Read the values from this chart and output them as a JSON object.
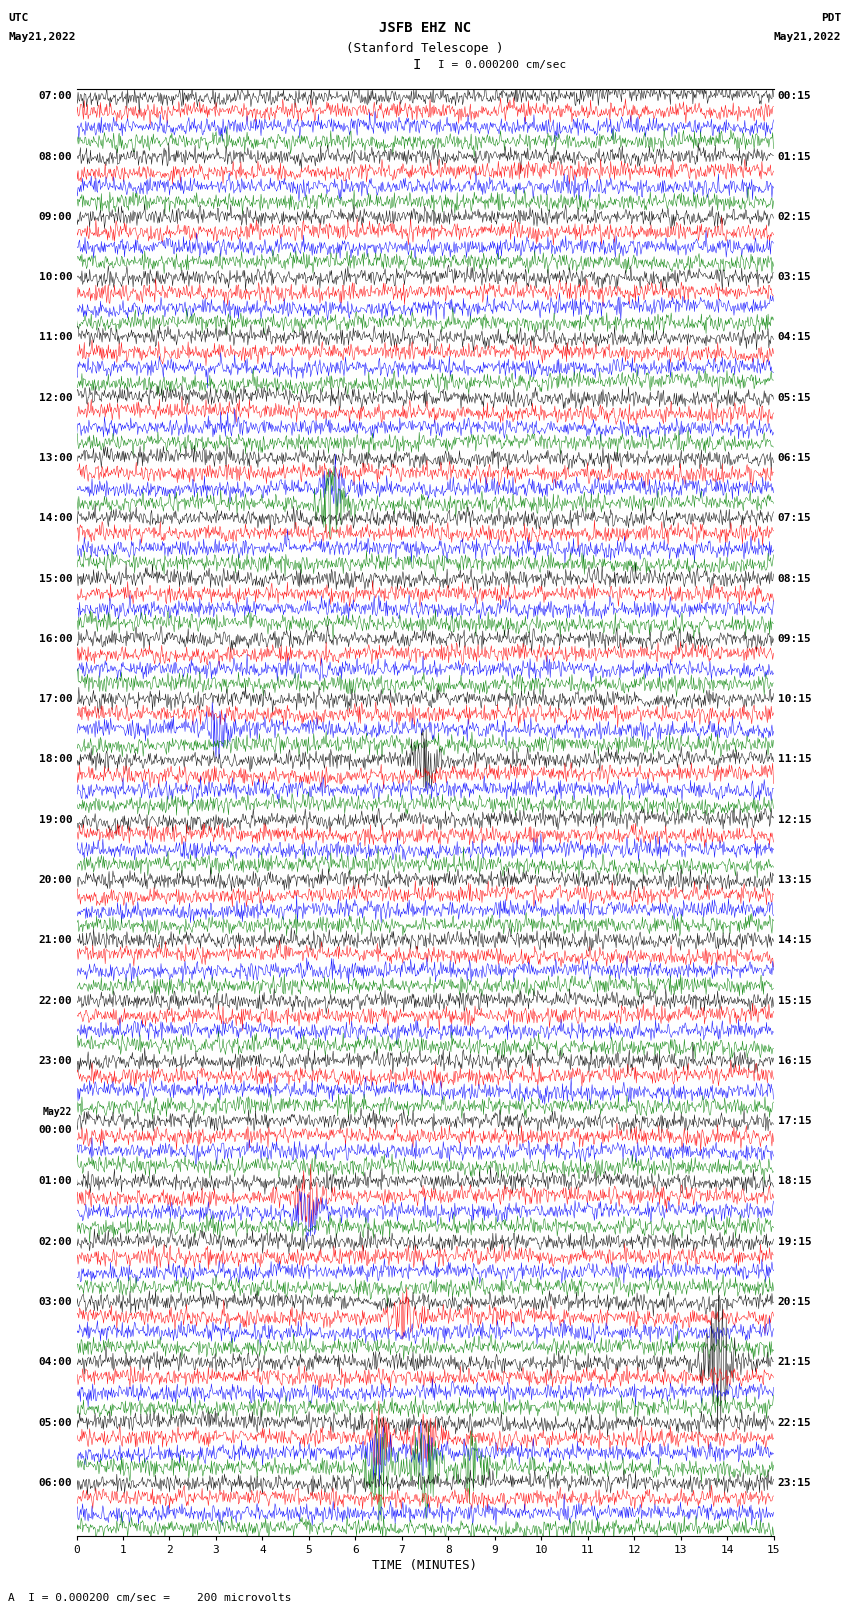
{
  "title_line1": "JSFB EHZ NC",
  "title_line2": "(Stanford Telescope )",
  "scale_label": "I = 0.000200 cm/sec",
  "bottom_label": "A  I = 0.000200 cm/sec =    200 microvolts",
  "xlabel": "TIME (MINUTES)",
  "left_header_line1": "UTC",
  "left_header_line2": "May21,2022",
  "right_header_line1": "PDT",
  "right_header_line2": "May21,2022",
  "num_hour_blocks": 24,
  "traces_per_block": 4,
  "minutes_per_row": 15,
  "trace_colors": [
    "black",
    "red",
    "blue",
    "green"
  ],
  "bg_color": "white",
  "fig_width": 8.5,
  "fig_height": 16.13,
  "dpi": 100,
  "left_times": [
    "07:00",
    "",
    "",
    "",
    "08:00",
    "",
    "",
    "",
    "09:00",
    "",
    "",
    "",
    "10:00",
    "",
    "",
    "",
    "11:00",
    "",
    "",
    "",
    "12:00",
    "",
    "",
    "",
    "13:00",
    "",
    "",
    "",
    "14:00",
    "",
    "",
    "",
    "15:00",
    "",
    "",
    "",
    "16:00",
    "",
    "",
    "",
    "17:00",
    "",
    "",
    "",
    "18:00",
    "",
    "",
    "",
    "19:00",
    "",
    "",
    "",
    "20:00",
    "",
    "",
    "",
    "21:00",
    "",
    "",
    "",
    "22:00",
    "",
    "",
    "",
    "23:00",
    "",
    "",
    "",
    "May22 00:00",
    "",
    "",
    "",
    "01:00",
    "",
    "",
    "",
    "02:00",
    "",
    "",
    "",
    "03:00",
    "",
    "",
    "",
    "04:00",
    "",
    "",
    "",
    "05:00",
    "",
    "",
    "",
    "06:00",
    "",
    "",
    ""
  ],
  "right_times": [
    "00:15",
    "",
    "",
    "",
    "01:15",
    "",
    "",
    "",
    "02:15",
    "",
    "",
    "",
    "03:15",
    "",
    "",
    "",
    "04:15",
    "",
    "",
    "",
    "05:15",
    "",
    "",
    "",
    "06:15",
    "",
    "",
    "",
    "07:15",
    "",
    "",
    "",
    "08:15",
    "",
    "",
    "",
    "09:15",
    "",
    "",
    "",
    "10:15",
    "",
    "",
    "",
    "11:15",
    "",
    "",
    "",
    "12:15",
    "",
    "",
    "",
    "13:15",
    "",
    "",
    "",
    "14:15",
    "",
    "",
    "",
    "15:15",
    "",
    "",
    "",
    "16:15",
    "",
    "",
    "",
    "17:15",
    "",
    "",
    "",
    "18:15",
    "",
    "",
    "",
    "19:15",
    "",
    "",
    "",
    "20:15",
    "",
    "",
    "",
    "21:15",
    "",
    "",
    "",
    "22:15",
    "",
    "",
    "",
    "23:15",
    "",
    "",
    ""
  ]
}
